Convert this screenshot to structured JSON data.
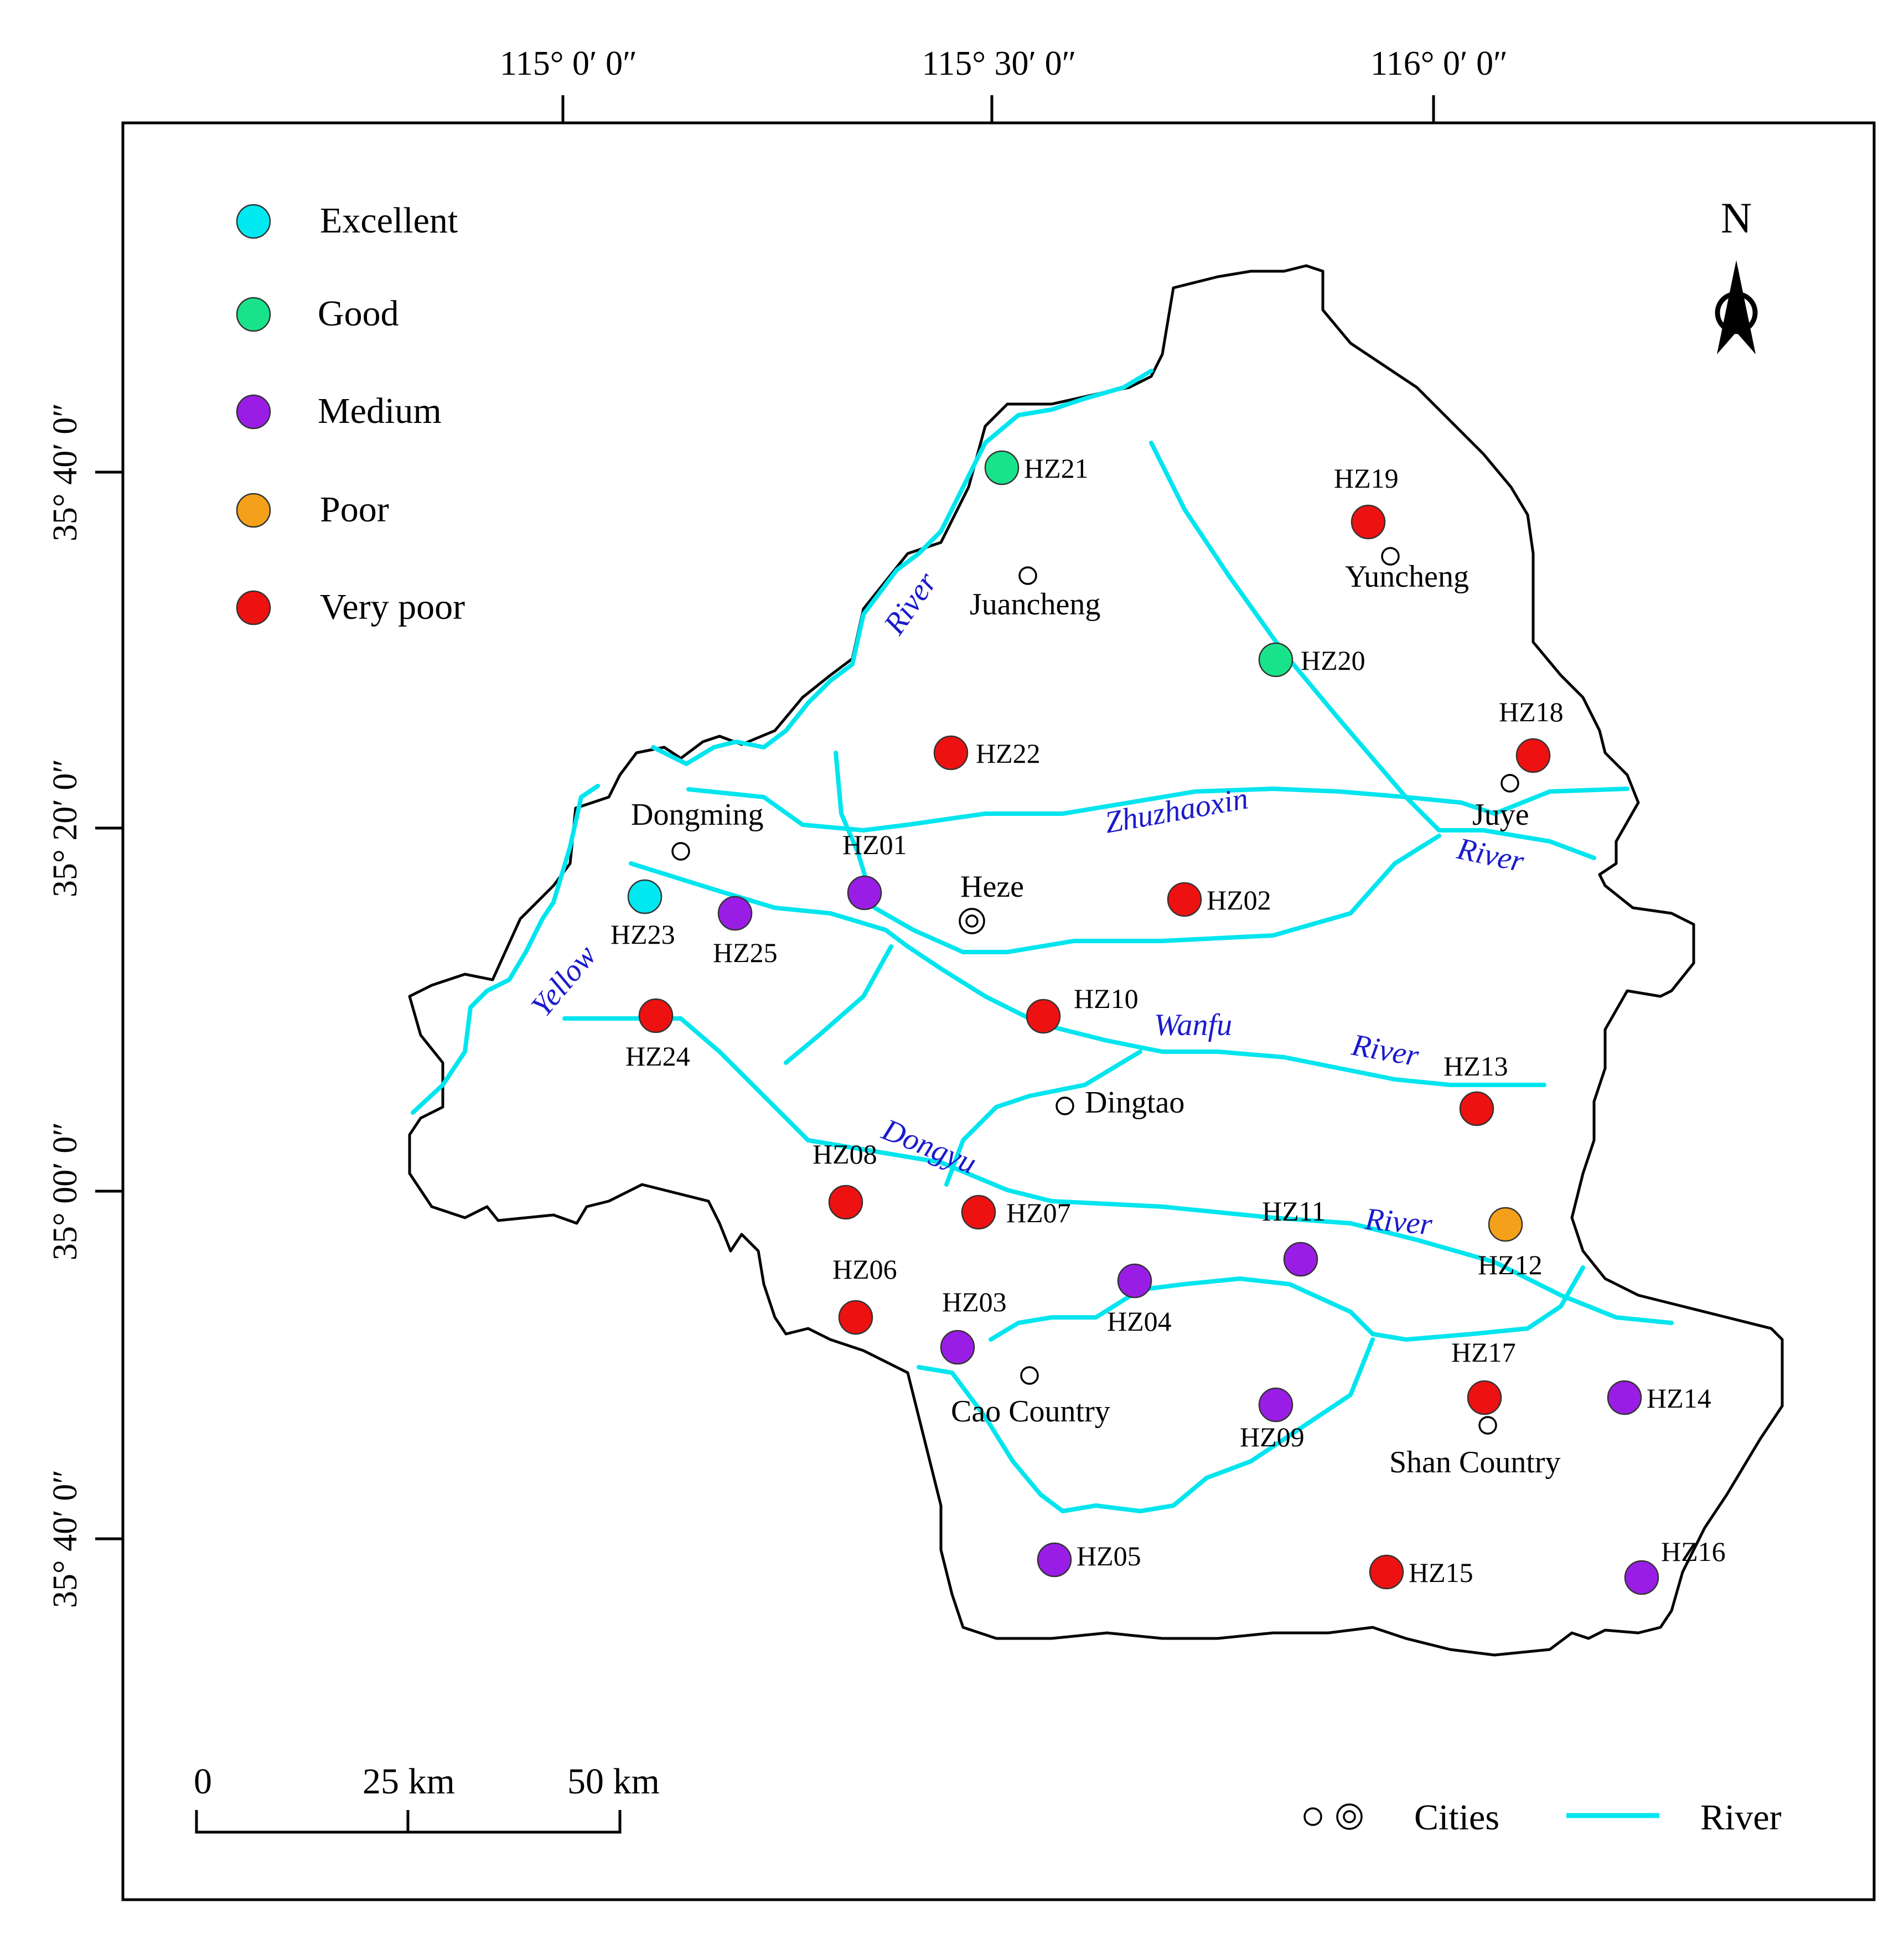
{
  "colors": {
    "excellent": "#00e8f0",
    "good": "#19e38a",
    "medium": "#9a1de6",
    "poor": "#f5a01a",
    "very_poor": "#ee1111",
    "river": "#00e5ee",
    "river_label": "#1a1acc"
  },
  "coords": {
    "top": [
      "115°  0′  0″",
      "115°  30′  0″",
      "116°  0′  0″"
    ],
    "left": [
      "35°  40′  0″",
      "35°  20′  0″",
      "35°  00′  0″",
      "35°  40′  0″"
    ]
  },
  "legend": {
    "excellent": "Excellent",
    "good": "Good",
    "medium": "Medium",
    "poor": "Poor",
    "very_poor": "Very  poor"
  },
  "north": "N",
  "scale": {
    "zero": "0",
    "mid": "25 km",
    "end": "50  km"
  },
  "bottom_legend": {
    "cities": "Cities",
    "river": "River"
  },
  "rivers": {
    "yellow": "Yellow",
    "river_nw": "River",
    "zhuzhaoxin": "Zhuzhaoxin",
    "river_ne": "River",
    "wanfu": "Wanfu",
    "river_wanfu": "River",
    "dongyu": "Dongyu",
    "river_dongyu": "River"
  },
  "cities": {
    "juancheng": "Juancheng",
    "yuncheng": "Yuncheng",
    "juye": "Juye",
    "dongming": "Dongming",
    "heze": "Heze",
    "dingtao": "Dingtao",
    "cao": "Cao  Country",
    "shan": "Shan  Country"
  },
  "sites": [
    {
      "id": "HZ01",
      "grade": "medium"
    },
    {
      "id": "HZ02",
      "grade": "very_poor"
    },
    {
      "id": "HZ03",
      "grade": "medium"
    },
    {
      "id": "HZ04",
      "grade": "medium"
    },
    {
      "id": "HZ05",
      "grade": "medium"
    },
    {
      "id": "HZ06",
      "grade": "very_poor"
    },
    {
      "id": "HZ07",
      "grade": "very_poor"
    },
    {
      "id": "HZ08",
      "grade": "very_poor"
    },
    {
      "id": "HZ09",
      "grade": "medium"
    },
    {
      "id": "HZ10",
      "grade": "very_poor"
    },
    {
      "id": "HZ11",
      "grade": "medium"
    },
    {
      "id": "HZ12",
      "grade": "poor"
    },
    {
      "id": "HZ13",
      "grade": "very_poor"
    },
    {
      "id": "HZ14",
      "grade": "medium"
    },
    {
      "id": "HZ15",
      "grade": "very_poor"
    },
    {
      "id": "HZ16",
      "grade": "medium"
    },
    {
      "id": "HZ17",
      "grade": "very_poor"
    },
    {
      "id": "HZ18",
      "grade": "very_poor"
    },
    {
      "id": "HZ19",
      "grade": "very_poor"
    },
    {
      "id": "HZ20",
      "grade": "good"
    },
    {
      "id": "HZ21",
      "grade": "good"
    },
    {
      "id": "HZ22",
      "grade": "very_poor"
    },
    {
      "id": "HZ23",
      "grade": "excellent"
    },
    {
      "id": "HZ24",
      "grade": "very_poor"
    },
    {
      "id": "HZ25",
      "grade": "medium"
    }
  ]
}
